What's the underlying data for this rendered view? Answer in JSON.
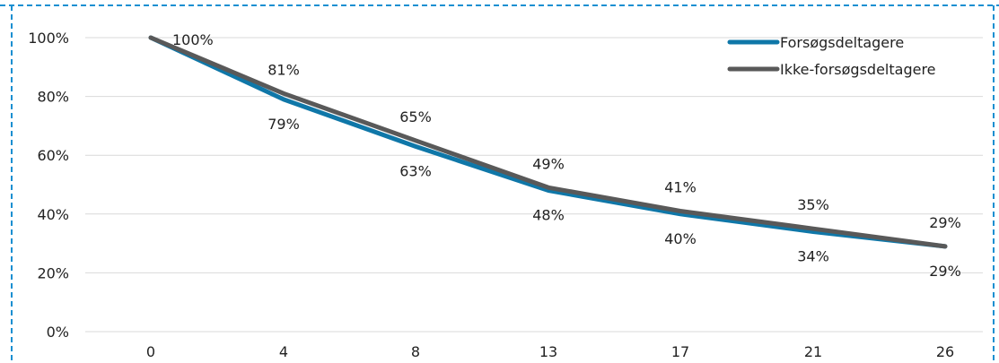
{
  "chart_data": {
    "type": "line",
    "title": "",
    "xlabel": "",
    "ylabel": "",
    "categories": [
      "0",
      "4",
      "8",
      "13",
      "17",
      "21",
      "26"
    ],
    "ylim": [
      0,
      100
    ],
    "y_ticks": [
      "0%",
      "20%",
      "40%",
      "60%",
      "80%",
      "100%"
    ],
    "series": [
      {
        "name": "Forsøgsdeltagere",
        "color": "#0f77a8",
        "values": [
          100,
          79,
          63,
          48,
          40,
          34,
          29
        ],
        "labels": [
          "100%",
          "79%",
          "63%",
          "48%",
          "40%",
          "34%",
          "29%"
        ]
      },
      {
        "name": "Ikke-forsøgsdeltagere",
        "color": "#595959",
        "values": [
          100,
          81,
          65,
          49,
          41,
          35,
          29
        ],
        "labels": [
          "",
          "81%",
          "65%",
          "49%",
          "41%",
          "35%",
          "29%"
        ]
      }
    ],
    "grid": true,
    "legend": "top-right"
  }
}
